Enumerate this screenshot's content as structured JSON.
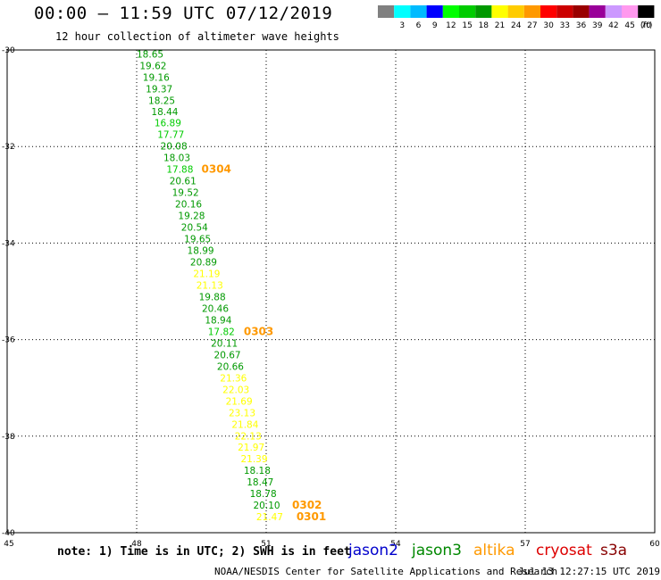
{
  "title": "00:00 – 11:59 UTC 07/12/2019",
  "subtitle": "12 hour collection of altimeter wave heights",
  "footer": {
    "note": "note:  1) Time is in UTC; 2) SWH is in feet",
    "credit": "NOAA/NESDIS Center for Satellite Applications and Research",
    "timestamp": "Jul 13 12:27:15 UTC 2019"
  },
  "satellites": [
    {
      "name": "jason2",
      "color": "#0000cc"
    },
    {
      "name": "jason3",
      "color": "#008800"
    },
    {
      "name": "altika",
      "color": "#ff9900"
    },
    {
      "name": "cryosat",
      "color": "#dd0000"
    },
    {
      "name": "s3a",
      "color": "#880000"
    }
  ],
  "colorbar": {
    "unit": "(ft)",
    "bins": [
      {
        "label": "",
        "color": "#808080"
      },
      {
        "label": "3",
        "color": "#00ffff"
      },
      {
        "label": "6",
        "color": "#00bbff"
      },
      {
        "label": "9",
        "color": "#0000ff"
      },
      {
        "label": "12",
        "color": "#00ff00"
      },
      {
        "label": "15",
        "color": "#00cc00"
      },
      {
        "label": "18",
        "color": "#009900"
      },
      {
        "label": "21",
        "color": "#ffff00"
      },
      {
        "label": "24",
        "color": "#ffcc00"
      },
      {
        "label": "27",
        "color": "#ff9900"
      },
      {
        "label": "30",
        "color": "#ff0000"
      },
      {
        "label": "33",
        "color": "#cc0000"
      },
      {
        "label": "36",
        "color": "#990000"
      },
      {
        "label": "39",
        "color": "#990099"
      },
      {
        "label": "42",
        "color": "#cc99ff"
      },
      {
        "label": "45",
        "color": "#ff99ee"
      },
      {
        "label": "70",
        "color": "#000000"
      }
    ]
  },
  "chart_data": {
    "type": "scatter",
    "xlim": [
      45,
      60
    ],
    "ylim": [
      -40,
      -30
    ],
    "x_ticks": [
      "45",
      "48",
      "51",
      "54",
      "57",
      "60"
    ],
    "y_ticks": [
      "-30",
      "-32",
      "-34",
      "-36",
      "-38",
      "-40"
    ],
    "grid": true,
    "points": [
      {
        "x": 48.0,
        "y": -30.08,
        "label": "18.65",
        "color": "#009900"
      },
      {
        "x": 48.07,
        "y": -30.32,
        "label": "19.62",
        "color": "#009900"
      },
      {
        "x": 48.14,
        "y": -30.56,
        "label": "19.16",
        "color": "#009900"
      },
      {
        "x": 48.21,
        "y": -30.8,
        "label": "19.37",
        "color": "#009900"
      },
      {
        "x": 48.27,
        "y": -31.04,
        "label": "18.25",
        "color": "#009900"
      },
      {
        "x": 48.34,
        "y": -31.28,
        "label": "18.44",
        "color": "#009900"
      },
      {
        "x": 48.41,
        "y": -31.51,
        "label": "16.89",
        "color": "#00cc00"
      },
      {
        "x": 48.48,
        "y": -31.75,
        "label": "17.77",
        "color": "#00cc00"
      },
      {
        "x": 48.55,
        "y": -31.99,
        "label": "20.08",
        "color": "#009900"
      },
      {
        "x": 48.62,
        "y": -32.23,
        "label": "18.03",
        "color": "#009900"
      },
      {
        "x": 48.69,
        "y": -32.47,
        "label": "17.88",
        "color": "#00cc00"
      },
      {
        "x": 48.76,
        "y": -32.71,
        "label": "20.61",
        "color": "#009900"
      },
      {
        "x": 48.82,
        "y": -32.95,
        "label": "19.52",
        "color": "#009900"
      },
      {
        "x": 48.89,
        "y": -33.19,
        "label": "20.16",
        "color": "#009900"
      },
      {
        "x": 48.96,
        "y": -33.43,
        "label": "19.28",
        "color": "#009900"
      },
      {
        "x": 49.03,
        "y": -33.67,
        "label": "20.54",
        "color": "#009900"
      },
      {
        "x": 49.1,
        "y": -33.91,
        "label": "19.65",
        "color": "#009900"
      },
      {
        "x": 49.17,
        "y": -34.15,
        "label": "18.99",
        "color": "#009900"
      },
      {
        "x": 49.24,
        "y": -34.39,
        "label": "20.89",
        "color": "#009900"
      },
      {
        "x": 49.31,
        "y": -34.63,
        "label": "21.19",
        "color": "#ffff00"
      },
      {
        "x": 49.38,
        "y": -34.87,
        "label": "21.13",
        "color": "#ffff00"
      },
      {
        "x": 49.44,
        "y": -35.11,
        "label": "19.88",
        "color": "#009900"
      },
      {
        "x": 49.51,
        "y": -35.35,
        "label": "20.46",
        "color": "#009900"
      },
      {
        "x": 49.58,
        "y": -35.59,
        "label": "18.94",
        "color": "#009900"
      },
      {
        "x": 49.65,
        "y": -35.83,
        "label": "17.82",
        "color": "#00cc00"
      },
      {
        "x": 49.72,
        "y": -36.07,
        "label": "20.11",
        "color": "#009900"
      },
      {
        "x": 49.79,
        "y": -36.31,
        "label": "20.67",
        "color": "#009900"
      },
      {
        "x": 49.86,
        "y": -36.55,
        "label": "20.66",
        "color": "#009900"
      },
      {
        "x": 49.93,
        "y": -36.79,
        "label": "21.36",
        "color": "#ffff00"
      },
      {
        "x": 49.99,
        "y": -37.03,
        "label": "22.03",
        "color": "#ffff00"
      },
      {
        "x": 50.06,
        "y": -37.27,
        "label": "21.69",
        "color": "#ffff00"
      },
      {
        "x": 50.13,
        "y": -37.51,
        "label": "23.13",
        "color": "#ffff00"
      },
      {
        "x": 50.2,
        "y": -37.75,
        "label": "21.84",
        "color": "#ffff00"
      },
      {
        "x": 50.27,
        "y": -37.99,
        "label": "22.13",
        "color": "#ffff00"
      },
      {
        "x": 50.34,
        "y": -38.23,
        "label": "21.97",
        "color": "#ffff00"
      },
      {
        "x": 50.41,
        "y": -38.47,
        "label": "21.39",
        "color": "#ffff00"
      },
      {
        "x": 50.48,
        "y": -38.71,
        "label": "18.18",
        "color": "#009900"
      },
      {
        "x": 50.55,
        "y": -38.95,
        "label": "18.47",
        "color": "#009900"
      },
      {
        "x": 50.62,
        "y": -39.19,
        "label": "18.78",
        "color": "#009900"
      },
      {
        "x": 50.7,
        "y": -39.43,
        "label": "20.10",
        "color": "#009900"
      },
      {
        "x": 50.77,
        "y": -39.67,
        "label": "21.47",
        "color": "#ffff00"
      }
    ],
    "time_labels": [
      {
        "x": 49.5,
        "y": -32.47,
        "label": "0304",
        "color": "#ff9900"
      },
      {
        "x": 50.48,
        "y": -35.83,
        "label": "0303",
        "color": "#ff9900"
      },
      {
        "x": 51.6,
        "y": -39.43,
        "label": "0302",
        "color": "#ff9900"
      },
      {
        "x": 51.7,
        "y": -39.67,
        "label": "0301",
        "color": "#ff9900"
      }
    ]
  }
}
